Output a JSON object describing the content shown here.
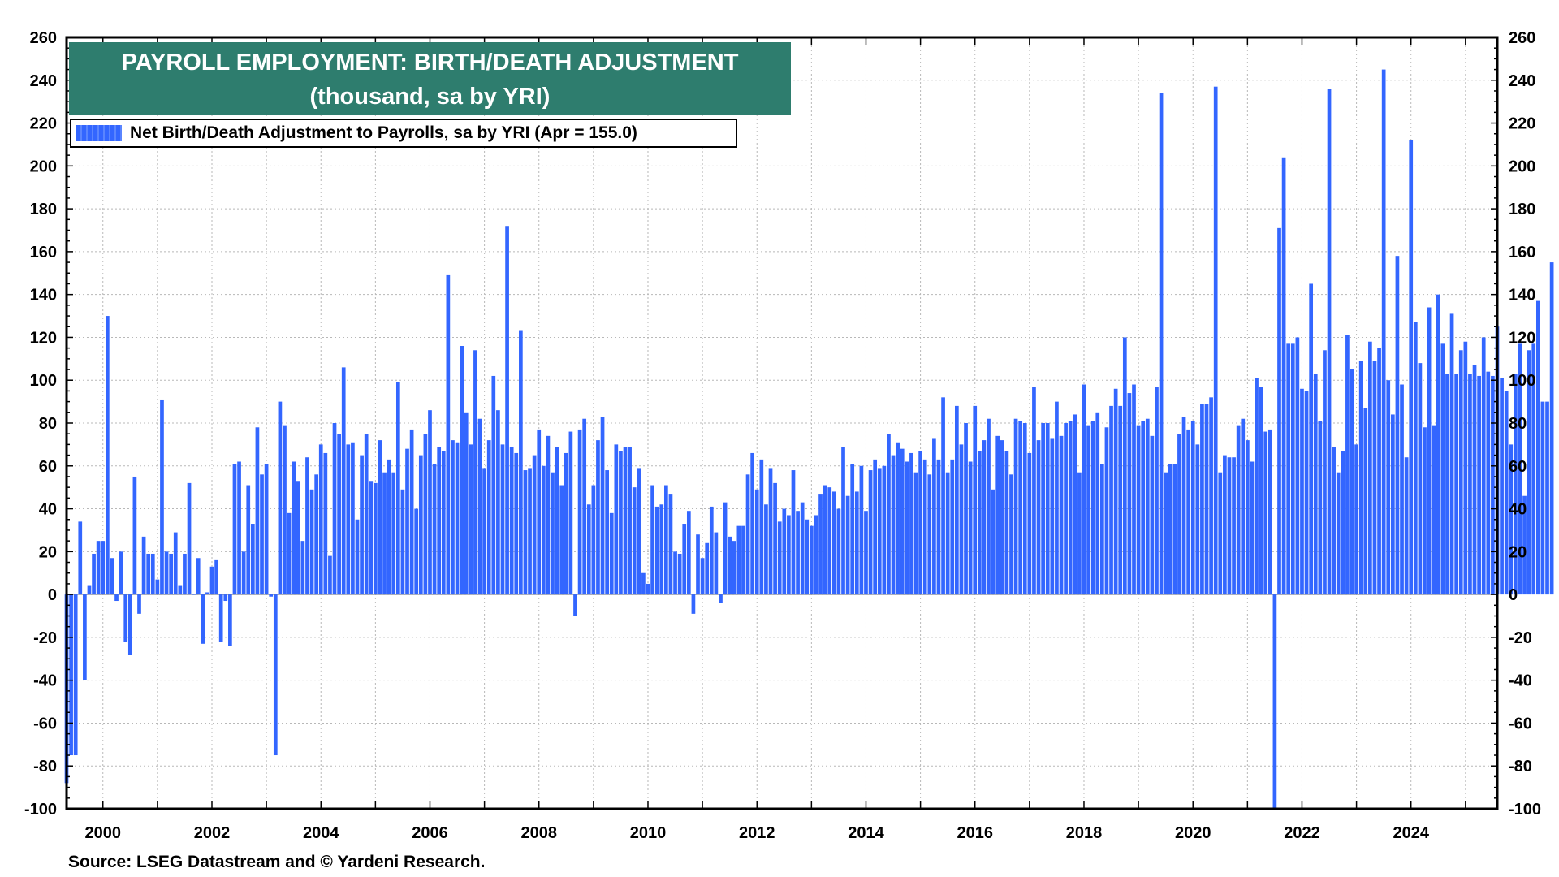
{
  "title": {
    "line1": "PAYROLL EMPLOYMENT: BIRTH/DEATH ADJUSTMENT",
    "line2": "(thousand, sa by YRI)"
  },
  "legend": {
    "label": "Net Birth/Death Adjustment to Payrolls, sa by YRI (Apr = 155.0)"
  },
  "source": "Source: LSEG Datastream and © Yardeni Research.",
  "colors": {
    "bar": "#3366ff",
    "title_bg": "#2e7d6e"
  },
  "chart_data": {
    "type": "bar",
    "title": "PAYROLL EMPLOYMENT: BIRTH/DEATH ADJUSTMENT",
    "subtitle": "(thousand, sa by YRI)",
    "frequency": "monthly",
    "ylim": [
      -100,
      260
    ],
    "yticks": [
      260,
      240,
      220,
      200,
      180,
      160,
      140,
      120,
      100,
      80,
      60,
      40,
      20,
      0,
      -20,
      -40,
      -60,
      -80,
      -100
    ],
    "xlim": [
      "1999-05",
      "2025-08"
    ],
    "xticks": [
      "2000",
      "2002",
      "2004",
      "2006",
      "2008",
      "2010",
      "2012",
      "2014",
      "2016",
      "2018",
      "2020",
      "2022",
      "2024"
    ],
    "grid": true,
    "dual_y_axis": true,
    "legend_position": "top-left",
    "series": [
      {
        "name": "Net Birth/Death Adjustment to Payrolls, sa by YRI (Apr = 155.0)",
        "start": "1999-05",
        "end": "2025-04",
        "values": [
          -88,
          -75,
          -75,
          34,
          -40,
          4,
          19,
          25,
          25,
          130,
          17,
          -3,
          20,
          -22,
          -28,
          55,
          -9,
          27,
          19,
          19,
          7,
          91,
          20,
          19,
          29,
          4,
          19,
          52,
          0,
          17,
          -23,
          1,
          13,
          16,
          -22,
          -3,
          -24,
          61,
          62,
          20,
          51,
          33,
          78,
          56,
          61,
          -1,
          -75,
          90,
          79,
          38,
          62,
          53,
          25,
          64,
          49,
          56,
          70,
          66,
          18,
          80,
          75,
          106,
          70,
          71,
          35,
          65,
          75,
          53,
          52,
          72,
          57,
          63,
          57,
          99,
          49,
          68,
          77,
          40,
          65,
          75,
          86,
          61,
          69,
          67,
          149,
          72,
          71,
          116,
          85,
          70,
          114,
          82,
          59,
          72,
          102,
          86,
          70,
          172,
          69,
          66,
          123,
          58,
          59,
          65,
          77,
          60,
          74,
          57,
          69,
          51,
          66,
          76,
          -10,
          77,
          82,
          42,
          51,
          72,
          83,
          58,
          38,
          70,
          67,
          69,
          69,
          50,
          59,
          10,
          5,
          51,
          41,
          42,
          51,
          47,
          20,
          19,
          33,
          39,
          -9,
          28,
          17,
          24,
          41,
          29,
          -4,
          43,
          27,
          25,
          32,
          32,
          56,
          66,
          49,
          63,
          42,
          59,
          52,
          34,
          40,
          37,
          58,
          39,
          43,
          35,
          32,
          37,
          47,
          51,
          50,
          48,
          40,
          69,
          46,
          61,
          48,
          60,
          39,
          58,
          63,
          59,
          60,
          75,
          65,
          71,
          68,
          62,
          66,
          57,
          67,
          63,
          56,
          73,
          63,
          92,
          57,
          63,
          88,
          70,
          80,
          62,
          88,
          67,
          72,
          82,
          49,
          74,
          72,
          67,
          56,
          82,
          81,
          80,
          66,
          97,
          72,
          80,
          80,
          73,
          90,
          74,
          80,
          81,
          84,
          57,
          98,
          79,
          81,
          85,
          61,
          78,
          88,
          96,
          88,
          120,
          94,
          98,
          79,
          81,
          82,
          74,
          97,
          234,
          57,
          61,
          61,
          75,
          83,
          77,
          81,
          70,
          89,
          89,
          92,
          237,
          57,
          65,
          64,
          64,
          79,
          82,
          72,
          62,
          101,
          97,
          76,
          77,
          -100,
          171,
          204,
          117,
          117,
          120,
          96,
          95,
          145,
          103,
          81,
          114,
          236,
          69,
          57,
          67,
          121,
          105,
          70,
          109,
          87,
          118,
          109,
          115,
          245,
          100,
          84,
          158,
          98,
          64,
          212,
          127,
          108,
          78,
          134,
          79,
          140,
          117,
          103,
          131,
          103,
          114,
          118,
          103,
          107,
          102,
          120,
          104,
          102,
          125,
          101,
          95,
          70,
          103,
          117,
          46,
          114,
          117,
          137,
          90,
          90,
          155
        ]
      }
    ]
  }
}
